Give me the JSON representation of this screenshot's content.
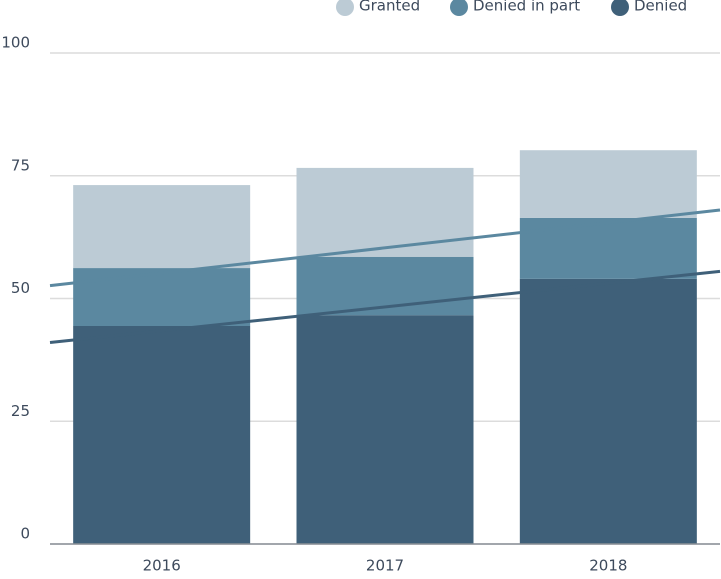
{
  "chart_data": {
    "type": "stacked-bar",
    "categories": [
      "2016",
      "2017",
      "2018"
    ],
    "series": [
      {
        "name": "Granted",
        "color": "#bccbd5",
        "values": [
          16.9,
          18.1,
          13.8
        ]
      },
      {
        "name": "Denied in part",
        "color": "#5b88a0",
        "values": [
          11.8,
          11.9,
          12.4
        ]
      },
      {
        "name": "Denied",
        "color": "#3f6079",
        "values": [
          44.4,
          46.6,
          54.0
        ]
      }
    ],
    "ylim": [
      0,
      100
    ],
    "yticks": [
      0,
      25,
      50,
      75,
      100
    ],
    "grid": true,
    "trend_lines": true,
    "legend": "top"
  }
}
